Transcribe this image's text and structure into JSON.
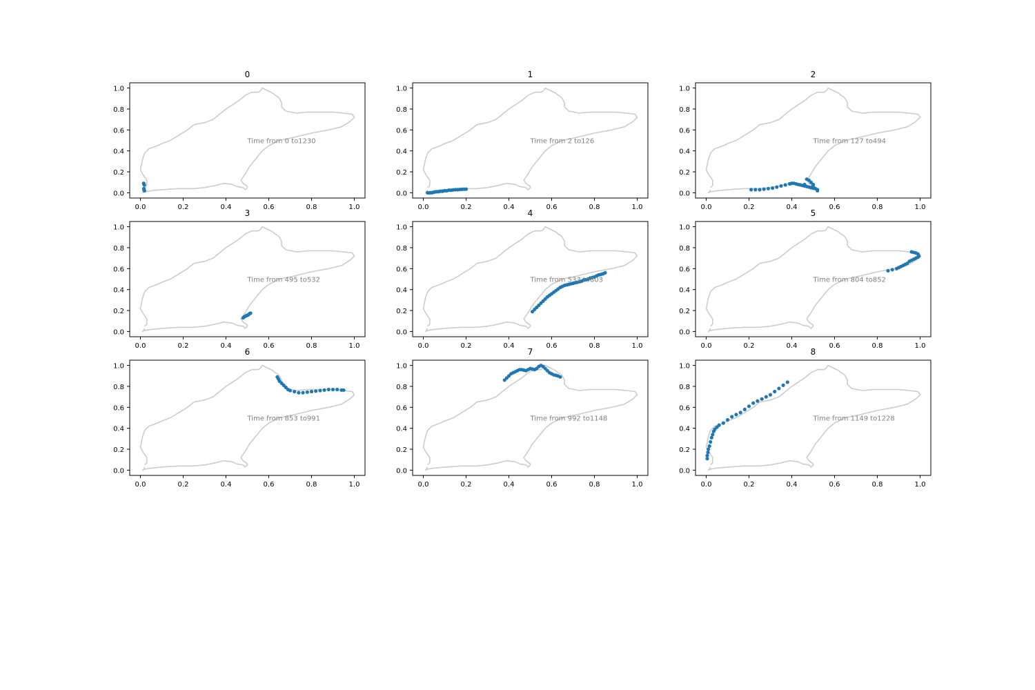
{
  "chart_data": {
    "type": "scatter",
    "colors": {
      "track": "#cccccc",
      "points": "#1f77b4",
      "annotation": "#808080"
    },
    "xlim": [
      -0.05,
      1.05
    ],
    "ylim": [
      -0.05,
      1.05
    ],
    "x_ticks": [
      0.0,
      0.2,
      0.4,
      0.6,
      0.8,
      1.0
    ],
    "y_ticks": [
      0.0,
      0.2,
      0.4,
      0.6,
      0.8,
      1.0
    ],
    "x_tick_labels": [
      "0.0",
      "0.2",
      "0.4",
      "0.6",
      "0.8",
      "1.0"
    ],
    "y_tick_labels": [
      "0.0",
      "0.2",
      "0.4",
      "0.6",
      "0.8",
      "1.0"
    ],
    "grid": false,
    "track_outline": {
      "x": [
        0.02,
        0.015,
        0.01,
        0.02,
        0.05,
        0.1,
        0.18,
        0.25,
        0.3,
        0.35,
        0.39,
        0.43,
        0.45,
        0.48,
        0.49,
        0.5,
        0.5,
        0.48,
        0.47,
        0.49,
        0.51,
        0.53,
        0.55,
        0.57,
        0.6,
        0.65,
        0.72,
        0.8,
        0.88,
        0.94,
        0.98,
        1.0,
        0.99,
        0.95,
        0.9,
        0.84,
        0.78,
        0.73,
        0.68,
        0.66,
        0.66,
        0.65,
        0.64,
        0.63,
        0.62,
        0.6,
        0.58,
        0.57,
        0.56,
        0.55,
        0.52,
        0.49,
        0.46,
        0.43,
        0.4,
        0.37,
        0.34,
        0.3,
        0.25,
        0.22,
        0.18,
        0.14,
        0.1,
        0.08,
        0.04,
        0.02,
        0.01,
        0.0,
        0.01,
        0.03,
        0.03,
        0.02
      ],
      "y": [
        0.03,
        0.01,
        0.0,
        0.01,
        0.02,
        0.03,
        0.04,
        0.04,
        0.05,
        0.07,
        0.09,
        0.08,
        0.06,
        0.05,
        0.03,
        0.05,
        0.06,
        0.09,
        0.12,
        0.18,
        0.25,
        0.3,
        0.35,
        0.4,
        0.45,
        0.5,
        0.53,
        0.57,
        0.6,
        0.63,
        0.68,
        0.72,
        0.75,
        0.76,
        0.77,
        0.77,
        0.77,
        0.76,
        0.78,
        0.82,
        0.86,
        0.9,
        0.92,
        0.93,
        0.95,
        0.97,
        0.99,
        1.0,
        0.97,
        0.96,
        0.96,
        0.93,
        0.88,
        0.84,
        0.8,
        0.75,
        0.7,
        0.67,
        0.65,
        0.6,
        0.55,
        0.5,
        0.47,
        0.45,
        0.42,
        0.38,
        0.32,
        0.22,
        0.18,
        0.12,
        0.07,
        0.05
      ]
    },
    "panels": [
      {
        "title": "0",
        "annotation": "Time from 0 to1230",
        "x": [
          0.015,
          0.017,
          0.018,
          0.016,
          0.017,
          0.019
        ],
        "y": [
          0.09,
          0.08,
          0.075,
          0.04,
          0.025,
          0.02
        ]
      },
      {
        "title": "1",
        "annotation": "Time from 2 to126",
        "x": [
          0.02,
          0.03,
          0.04,
          0.05,
          0.06,
          0.07,
          0.08,
          0.09,
          0.1,
          0.11,
          0.12,
          0.13,
          0.14,
          0.15,
          0.16,
          0.17,
          0.18,
          0.19,
          0.2
        ],
        "y": [
          0.0,
          0.0,
          0.0,
          0.005,
          0.01,
          0.01,
          0.015,
          0.015,
          0.02,
          0.02,
          0.025,
          0.025,
          0.028,
          0.03,
          0.03,
          0.032,
          0.033,
          0.034,
          0.035
        ]
      },
      {
        "title": "2",
        "annotation": "Time from 127 to494",
        "x": [
          0.21,
          0.23,
          0.25,
          0.27,
          0.29,
          0.31,
          0.33,
          0.35,
          0.37,
          0.39,
          0.4,
          0.41,
          0.42,
          0.43,
          0.44,
          0.45,
          0.46,
          0.47,
          0.48,
          0.49,
          0.5,
          0.51,
          0.52,
          0.52,
          0.51,
          0.5,
          0.5,
          0.49,
          0.48,
          0.47,
          0.46
        ],
        "y": [
          0.03,
          0.03,
          0.03,
          0.035,
          0.04,
          0.045,
          0.055,
          0.065,
          0.075,
          0.085,
          0.09,
          0.09,
          0.085,
          0.08,
          0.075,
          0.07,
          0.065,
          0.06,
          0.055,
          0.05,
          0.045,
          0.04,
          0.03,
          0.02,
          0.04,
          0.06,
          0.08,
          0.1,
          0.12,
          0.13,
          0.08
        ]
      },
      {
        "title": "3",
        "annotation": "Time from 495 to532",
        "x": [
          0.48,
          0.485,
          0.49,
          0.495,
          0.5,
          0.505,
          0.51,
          0.515
        ],
        "y": [
          0.13,
          0.14,
          0.145,
          0.15,
          0.155,
          0.16,
          0.17,
          0.175
        ]
      },
      {
        "title": "4",
        "annotation": "Time from 533 to803",
        "x": [
          0.51,
          0.52,
          0.53,
          0.54,
          0.55,
          0.56,
          0.57,
          0.58,
          0.59,
          0.6,
          0.61,
          0.62,
          0.63,
          0.64,
          0.65,
          0.66,
          0.67,
          0.68,
          0.69,
          0.7,
          0.71,
          0.72,
          0.73,
          0.74,
          0.75,
          0.76,
          0.77,
          0.78,
          0.79,
          0.8,
          0.81,
          0.82,
          0.83,
          0.84,
          0.85
        ],
        "y": [
          0.19,
          0.21,
          0.23,
          0.25,
          0.27,
          0.29,
          0.31,
          0.33,
          0.345,
          0.36,
          0.375,
          0.39,
          0.405,
          0.42,
          0.43,
          0.44,
          0.445,
          0.45,
          0.455,
          0.46,
          0.465,
          0.47,
          0.475,
          0.48,
          0.49,
          0.495,
          0.5,
          0.51,
          0.515,
          0.52,
          0.53,
          0.54,
          0.545,
          0.55,
          0.56
        ]
      },
      {
        "title": "5",
        "annotation": "Time from 804 to852",
        "x": [
          0.85,
          0.87,
          0.89,
          0.9,
          0.91,
          0.92,
          0.93,
          0.94,
          0.95,
          0.96,
          0.97,
          0.98,
          0.99,
          0.995,
          0.99,
          0.98,
          0.97,
          0.96
        ],
        "y": [
          0.58,
          0.59,
          0.6,
          0.61,
          0.62,
          0.63,
          0.64,
          0.65,
          0.67,
          0.68,
          0.69,
          0.7,
          0.71,
          0.72,
          0.74,
          0.75,
          0.755,
          0.76
        ]
      },
      {
        "title": "6",
        "annotation": "Time from 853 to991",
        "x": [
          0.64,
          0.645,
          0.65,
          0.66,
          0.67,
          0.68,
          0.69,
          0.7,
          0.72,
          0.74,
          0.76,
          0.78,
          0.8,
          0.82,
          0.84,
          0.86,
          0.88,
          0.9,
          0.92,
          0.94,
          0.95
        ],
        "y": [
          0.89,
          0.87,
          0.85,
          0.83,
          0.81,
          0.79,
          0.77,
          0.76,
          0.75,
          0.74,
          0.74,
          0.745,
          0.75,
          0.755,
          0.76,
          0.765,
          0.77,
          0.77,
          0.77,
          0.765,
          0.765
        ]
      },
      {
        "title": "7",
        "annotation": "Time from 992 to1148",
        "x": [
          0.38,
          0.39,
          0.4,
          0.41,
          0.42,
          0.43,
          0.44,
          0.45,
          0.46,
          0.47,
          0.48,
          0.49,
          0.5,
          0.51,
          0.52,
          0.53,
          0.54,
          0.55,
          0.56,
          0.57,
          0.58,
          0.59,
          0.6,
          0.61,
          0.62,
          0.63,
          0.64
        ],
        "y": [
          0.86,
          0.88,
          0.9,
          0.92,
          0.93,
          0.94,
          0.95,
          0.96,
          0.96,
          0.955,
          0.95,
          0.96,
          0.97,
          0.965,
          0.96,
          0.97,
          0.99,
          1.0,
          0.99,
          0.97,
          0.95,
          0.93,
          0.92,
          0.91,
          0.905,
          0.9,
          0.89
        ]
      },
      {
        "title": "8",
        "annotation": "Time from 1149 to1228",
        "x": [
          0.005,
          0.005,
          0.008,
          0.01,
          0.015,
          0.02,
          0.025,
          0.03,
          0.035,
          0.04,
          0.05,
          0.06,
          0.08,
          0.1,
          0.12,
          0.14,
          0.16,
          0.18,
          0.2,
          0.22,
          0.24,
          0.26,
          0.28,
          0.3,
          0.32,
          0.34,
          0.36,
          0.38
        ],
        "y": [
          0.11,
          0.14,
          0.17,
          0.2,
          0.23,
          0.27,
          0.31,
          0.34,
          0.37,
          0.39,
          0.41,
          0.43,
          0.45,
          0.48,
          0.51,
          0.53,
          0.55,
          0.58,
          0.61,
          0.64,
          0.66,
          0.68,
          0.7,
          0.72,
          0.75,
          0.78,
          0.81,
          0.84
        ]
      }
    ]
  }
}
